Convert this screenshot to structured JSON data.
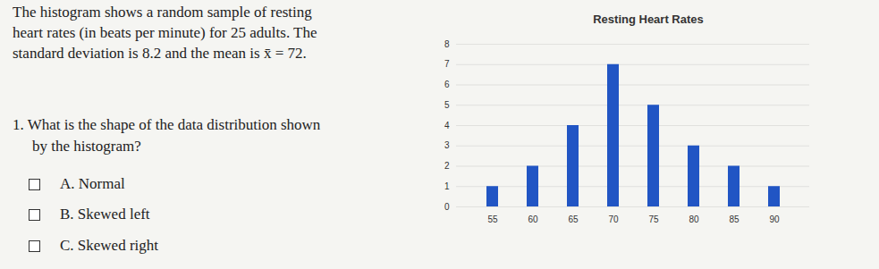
{
  "document": {
    "intro": [
      "The histogram shows a random sample of resting",
      "heart rates (in beats per minute) for 25 adults. The",
      "standard deviation is 8.2 and the mean is x̄ = 72."
    ],
    "question": [
      "1. What is the shape of the data distribution shown",
      "by the histogram?"
    ],
    "options": [
      {
        "letter": "A.",
        "text": "Normal"
      },
      {
        "letter": "B.",
        "text": "Skewed left"
      },
      {
        "letter": "C.",
        "text": "Skewed right"
      }
    ]
  },
  "chart_data": {
    "type": "bar",
    "title": "Resting Heart Rates",
    "categories": [
      55,
      60,
      65,
      70,
      75,
      80,
      85,
      90
    ],
    "values": [
      1,
      2,
      4,
      7,
      5,
      3,
      2,
      1
    ],
    "color": "#2155c4",
    "ylim": [
      0,
      8
    ],
    "yticks": [
      0,
      1,
      2,
      3,
      4,
      5,
      6,
      7,
      8
    ],
    "grid": true
  }
}
